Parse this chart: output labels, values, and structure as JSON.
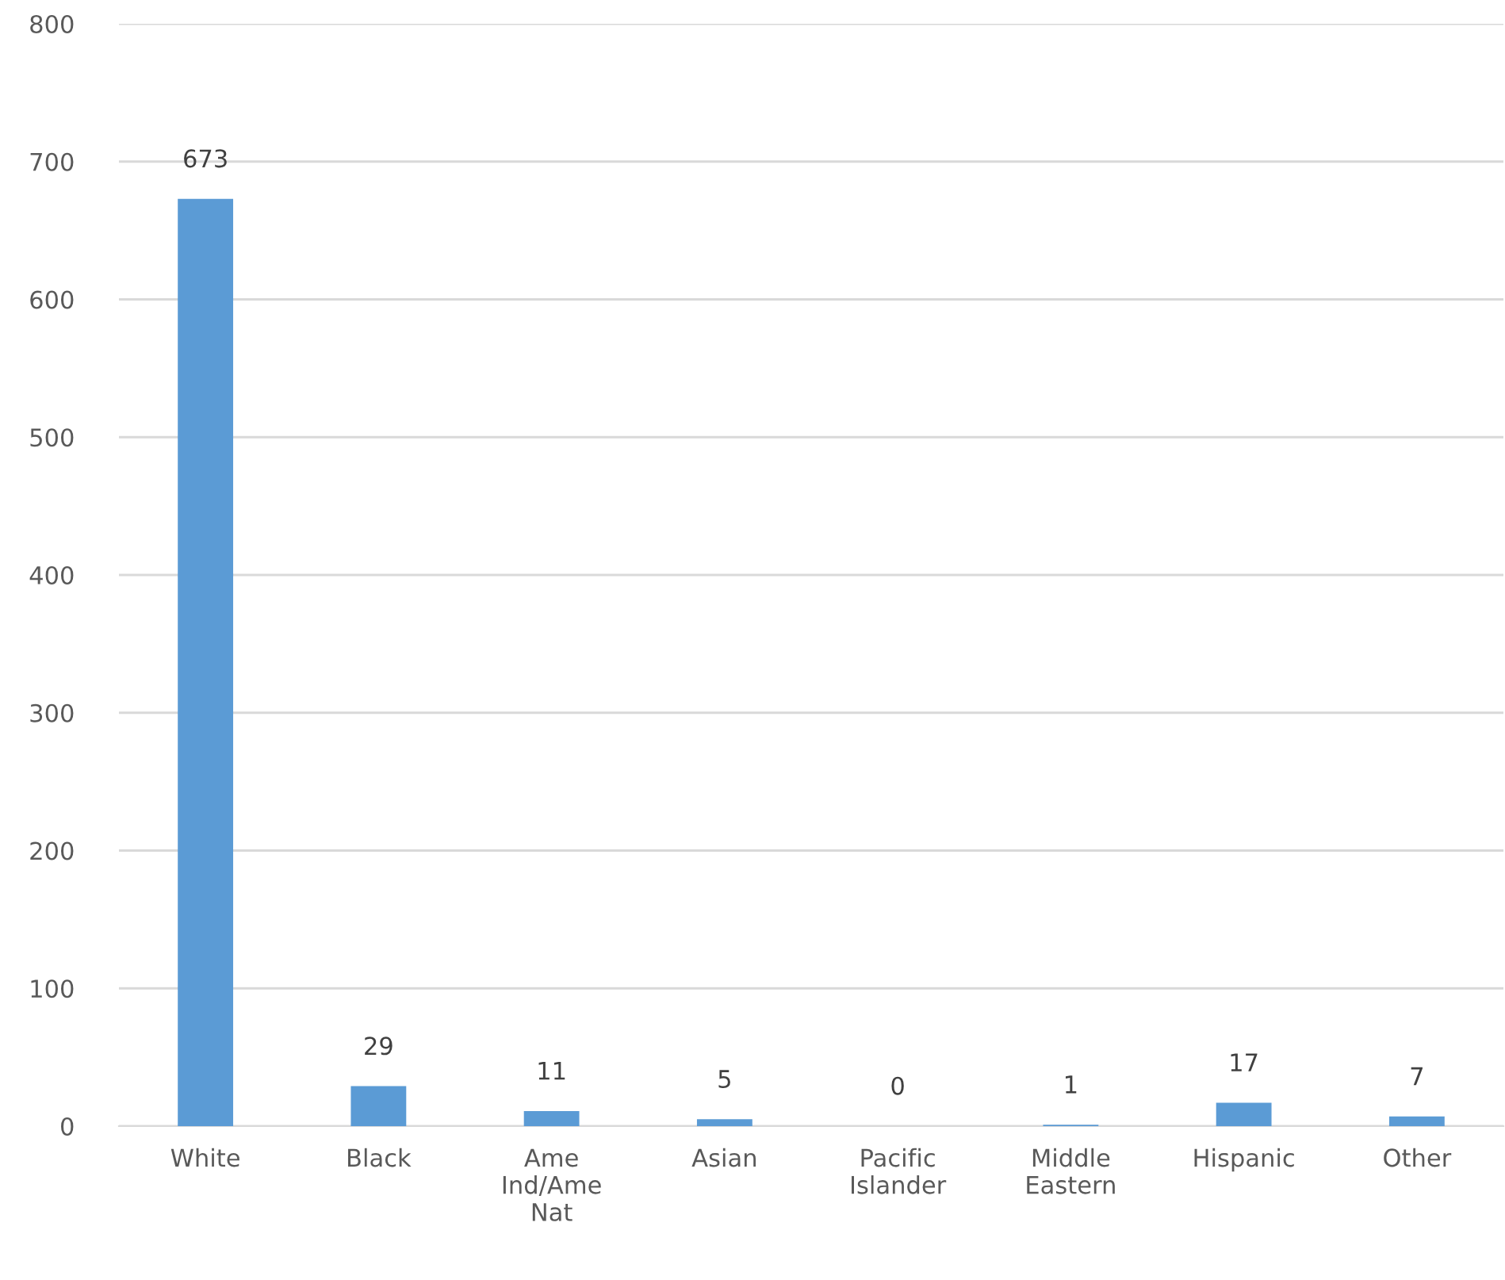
{
  "chart_data": {
    "type": "bar",
    "categories": [
      "White",
      "Black",
      "Ame Ind/Ame Nat",
      "Asian",
      "Pacific Islander",
      "Middle Eastern",
      "Hispanic",
      "Other"
    ],
    "values": [
      673,
      29,
      11,
      5,
      0,
      1,
      17,
      7
    ],
    "color": "#5b9bd5",
    "ylim": [
      0,
      800
    ],
    "yticks": [
      0,
      100,
      200,
      300,
      400,
      500,
      600,
      700,
      800
    ],
    "grid": "y",
    "data_labels": true
  }
}
